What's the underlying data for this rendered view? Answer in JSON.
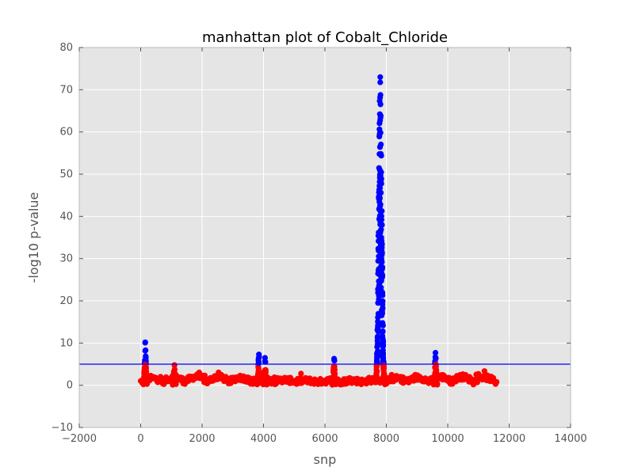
{
  "chart_data": {
    "type": "scatter",
    "title": "manhattan plot of Cobalt_Chloride",
    "xlabel": "snp",
    "ylabel": "-log10 p-value",
    "xlim": [
      -2000,
      14000
    ],
    "ylim": [
      -10,
      80
    ],
    "x_ticks": [
      "−2000",
      "0",
      "2000",
      "4000",
      "6000",
      "8000",
      "10000",
      "12000",
      "14000"
    ],
    "y_ticks": [
      "−10",
      "0",
      "10",
      "20",
      "30",
      "40",
      "50",
      "60",
      "70",
      "80"
    ],
    "grid": true,
    "legend": "none",
    "threshold": 5,
    "colors": {
      "below_threshold": "#ff0000",
      "above_threshold": "#0000ff",
      "threshold_line": "#0000ff",
      "plot_background": "#e5e5e5",
      "grid": "#ffffff"
    },
    "peaks": [
      {
        "x": 150,
        "max_y": 10.2
      },
      {
        "x": 1100,
        "max_y": 4.8
      },
      {
        "x": 3850,
        "max_y": 7.3
      },
      {
        "x": 4050,
        "max_y": 6.5
      },
      {
        "x": 6300,
        "max_y": 6.3
      },
      {
        "x": 7800,
        "max_y": 73
      },
      {
        "x": 9600,
        "max_y": 7.7
      }
    ]
  }
}
